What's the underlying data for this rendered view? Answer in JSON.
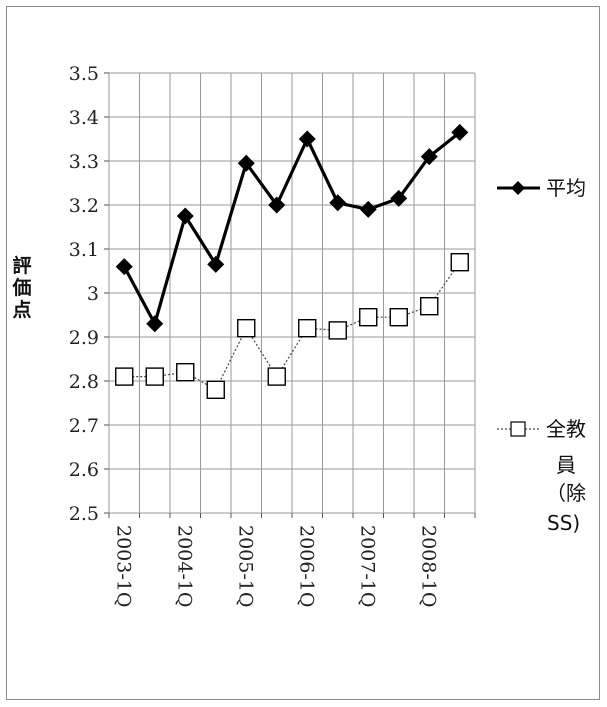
{
  "chart_data": {
    "type": "line",
    "title": "",
    "ylabel": "評価点",
    "xlabel": "",
    "ylim": [
      2.5,
      3.5
    ],
    "yticks": [
      "3.5",
      "3.4",
      "3.3",
      "3.2",
      "3.1",
      "3",
      "2.9",
      "2.8",
      "2.7",
      "2.6",
      "2.5"
    ],
    "ytick_values": [
      3.5,
      3.4,
      3.3,
      3.2,
      3.1,
      3.0,
      2.9,
      2.8,
      2.7,
      2.6,
      2.5
    ],
    "x_tick_labels": [
      "2003-1Q",
      "2004-1Q",
      "2005-1Q",
      "2006-1Q",
      "2007-1Q",
      "2008-1Q"
    ],
    "grid": true,
    "legend_position": "right",
    "series": [
      {
        "name": "平均",
        "marker": "diamond",
        "line_style": "solid",
        "color": "#000000",
        "values": [
          3.06,
          2.93,
          3.175,
          3.065,
          3.295,
          3.2,
          3.35,
          3.205,
          3.19,
          3.215,
          3.31,
          3.365
        ]
      },
      {
        "name": "全教員（除SS)",
        "name_lines": [
          "全教",
          "員",
          "（除",
          "SS)"
        ],
        "marker": "square-open",
        "line_style": "dotted",
        "color": "#444444",
        "values": [
          2.81,
          2.81,
          2.82,
          2.78,
          2.92,
          2.81,
          2.92,
          2.915,
          2.945,
          2.945,
          2.97,
          3.07
        ]
      }
    ]
  }
}
